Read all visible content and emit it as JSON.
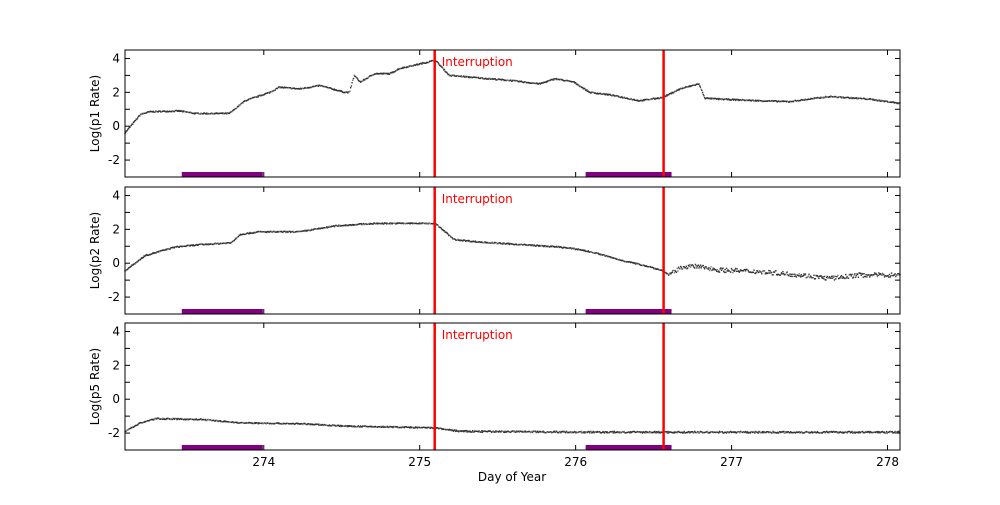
{
  "chart_data": {
    "type": "scatter",
    "xlabel": "Day of Year",
    "xlim": [
      273.11,
      278.08
    ],
    "xticks": [
      274,
      275,
      276,
      277,
      278
    ],
    "colors": {
      "points": "#333333",
      "interruption": "#ff0000",
      "bar": "#800080",
      "annotation": "#ff0000"
    },
    "interruptions": [
      275.096,
      276.564
    ],
    "annotation": "Interruption",
    "highlight_intervals": [
      [
        273.474,
        273.994
      ],
      [
        276.064,
        276.615
      ]
    ],
    "panels": [
      {
        "ylabel": "Log(p1 Rate)",
        "ylim": [
          -3,
          4.5
        ],
        "yticks": [
          -2,
          0,
          2,
          4
        ],
        "series": [
          {
            "x": [
              273.11,
              273.21,
              273.27,
              273.46,
              273.56,
              273.78,
              273.88,
              274.04,
              274.1,
              274.23,
              274.36,
              274.52,
              274.55,
              274.58,
              274.62,
              274.71,
              274.81,
              274.87,
              275.06,
              275.1,
              275.19,
              275.38,
              275.58,
              275.77,
              275.87,
              275.99,
              276.09,
              276.22,
              276.41,
              276.56,
              276.67,
              276.79,
              276.83,
              276.92,
              277.18,
              277.37,
              277.63,
              277.88,
              278.08
            ],
            "y": [
              -0.4,
              0.7,
              0.85,
              0.9,
              0.75,
              0.75,
              1.5,
              2.0,
              2.3,
              2.2,
              2.4,
              2.0,
              2.0,
              3.0,
              2.6,
              3.1,
              3.1,
              3.4,
              3.8,
              3.9,
              3.0,
              2.85,
              2.7,
              2.5,
              2.8,
              2.6,
              2.0,
              1.85,
              1.5,
              1.7,
              2.2,
              2.5,
              1.65,
              1.6,
              1.5,
              1.45,
              1.75,
              1.6,
              1.35
            ]
          }
        ]
      },
      {
        "ylabel": "Log(p2 Rate)",
        "ylim": [
          -3,
          4.5
        ],
        "yticks": [
          -2,
          0,
          2,
          4
        ],
        "series": [
          {
            "x": [
              273.11,
              273.24,
              273.43,
              273.6,
              273.79,
              273.85,
              273.97,
              274.23,
              274.46,
              274.62,
              274.74,
              274.87,
              275.06,
              275.1,
              275.22,
              275.38,
              275.64,
              275.9,
              276.03,
              276.15,
              276.28,
              276.47,
              276.56,
              276.6,
              276.69,
              276.79,
              276.92,
              277.18,
              277.44,
              277.63,
              277.82,
              278.08
            ],
            "y": [
              -0.45,
              0.45,
              0.95,
              1.1,
              1.2,
              1.7,
              1.85,
              1.85,
              2.2,
              2.3,
              2.35,
              2.35,
              2.35,
              2.35,
              1.4,
              1.25,
              1.1,
              0.95,
              0.8,
              0.55,
              0.2,
              -0.2,
              -0.45,
              -0.7,
              -0.2,
              -0.2,
              -0.4,
              -0.5,
              -0.7,
              -0.9,
              -0.7,
              -0.7
            ]
          }
        ]
      },
      {
        "ylabel": "Log(p5 Rate)",
        "ylim": [
          -3,
          4.5
        ],
        "yticks": [
          -2,
          0,
          2,
          4
        ],
        "series": [
          {
            "x": [
              273.11,
              273.21,
              273.31,
              273.6,
              273.85,
              274.23,
              274.55,
              274.87,
              275.1,
              275.26,
              276.15,
              278.08
            ],
            "y": [
              -1.9,
              -1.4,
              -1.15,
              -1.2,
              -1.4,
              -1.45,
              -1.6,
              -1.65,
              -1.7,
              -1.9,
              -1.95,
              -1.95
            ]
          }
        ]
      }
    ]
  }
}
